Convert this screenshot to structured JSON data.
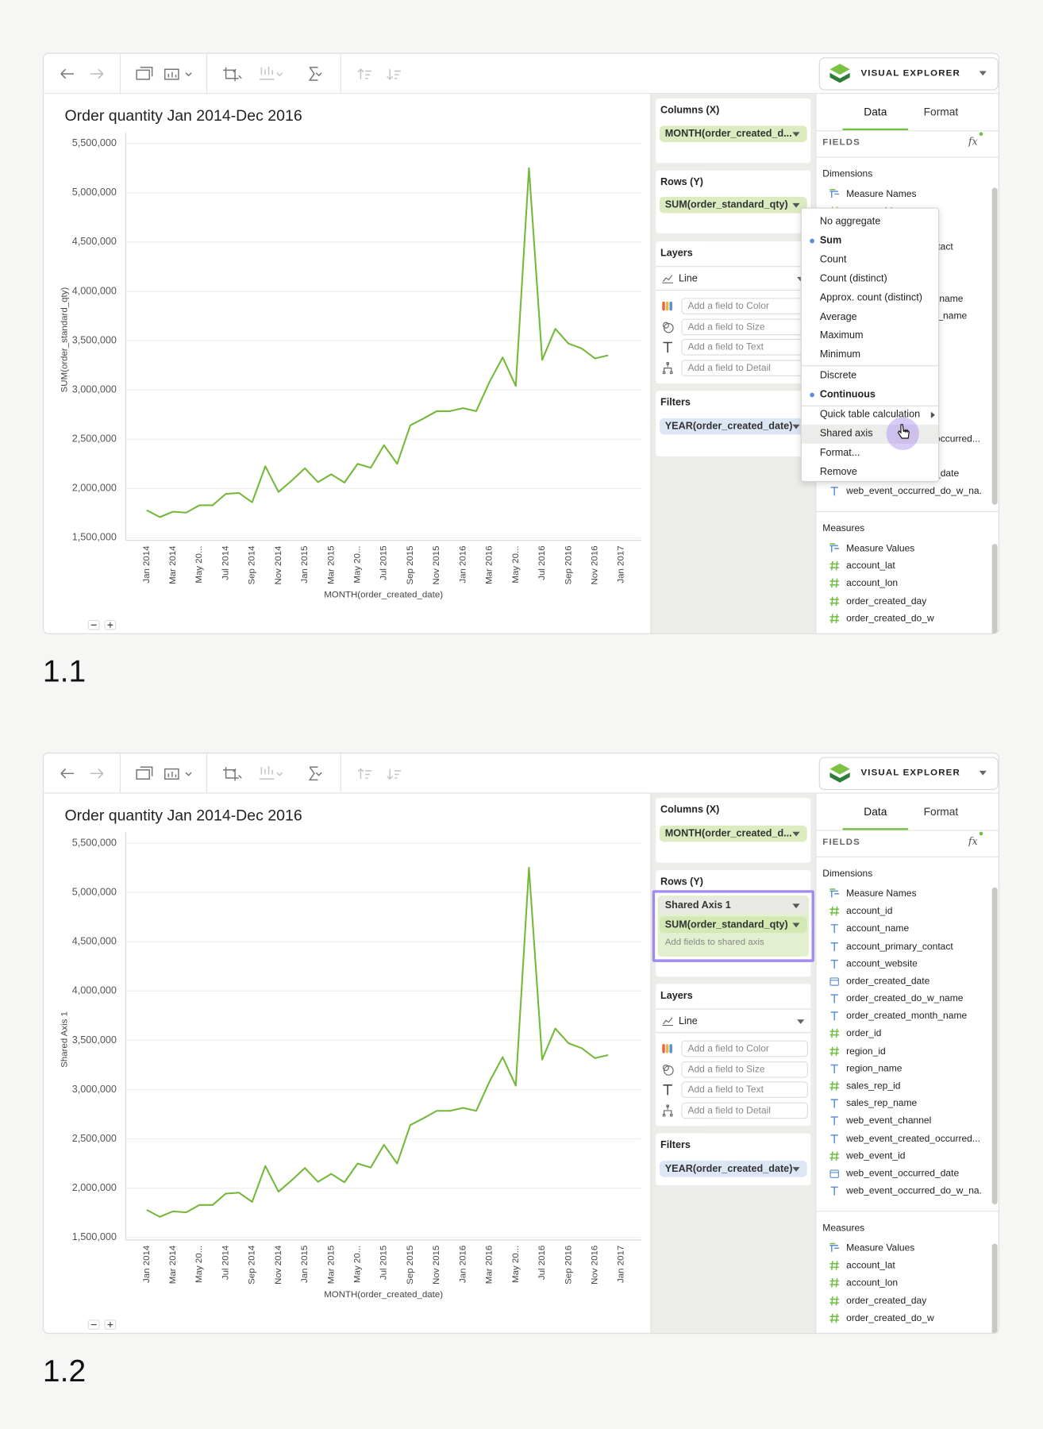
{
  "ui": {
    "product": "VISUAL EXPLORER",
    "tabs": [
      "Data",
      "Format"
    ],
    "fields_header": "FIELDS",
    "formula_icon": "fx",
    "dimensions_title": "Dimensions",
    "dimensions": [
      {
        "name": "Measure Names",
        "kind": "special"
      },
      {
        "name": "account_id",
        "kind": "number"
      },
      {
        "name": "account_name",
        "kind": "text"
      },
      {
        "name": "account_primary_contact",
        "kind": "text"
      },
      {
        "name": "account_website",
        "kind": "text"
      },
      {
        "name": "order_created_date",
        "kind": "date"
      },
      {
        "name": "order_created_do_w_name",
        "kind": "text"
      },
      {
        "name": "order_created_month_name",
        "kind": "text"
      },
      {
        "name": "order_id",
        "kind": "number"
      },
      {
        "name": "region_id",
        "kind": "number"
      },
      {
        "name": "region_name",
        "kind": "text"
      },
      {
        "name": "sales_rep_id",
        "kind": "number"
      },
      {
        "name": "sales_rep_name",
        "kind": "text"
      },
      {
        "name": "web_event_channel",
        "kind": "text"
      },
      {
        "name": "web_event_created_occurred...",
        "kind": "text"
      },
      {
        "name": "web_event_id",
        "kind": "number"
      },
      {
        "name": "web_event_occurred_date",
        "kind": "date"
      },
      {
        "name": "web_event_occurred_do_w_na...",
        "kind": "text"
      }
    ],
    "measures_title": "Measures",
    "measures": [
      {
        "name": "Measure Values",
        "kind": "special"
      },
      {
        "name": "account_lat",
        "kind": "number"
      },
      {
        "name": "account_lon",
        "kind": "number"
      },
      {
        "name": "order_created_day",
        "kind": "number"
      },
      {
        "name": "order_created_do_w",
        "kind": "number"
      }
    ],
    "columns_title": "Columns (X)",
    "columns_pill": "MONTH(order_created_d...",
    "rows_title": "Rows (Y)",
    "rows_pill": "SUM(order_standard_qty)",
    "layers_title": "Layers",
    "layer_type": "Line",
    "layer_inputs": [
      "Add a field to Color",
      "Add a field to Size",
      "Add a field to Text",
      "Add a field to Detail"
    ],
    "filters_title": "Filters",
    "filters_pill": "YEAR(order_created_date)"
  },
  "panels": [
    {
      "label": "1.1",
      "menu": [
        {
          "text": "No aggregate"
        },
        {
          "text": "Sum",
          "selected": true
        },
        {
          "text": "Count"
        },
        {
          "text": "Count (distinct)"
        },
        {
          "text": "Approx. count (distinct)"
        },
        {
          "text": "Average"
        },
        {
          "text": "Maximum"
        },
        {
          "text": "Minimum"
        },
        {
          "text": "Discrete",
          "separator_before": true
        },
        {
          "text": "Continuous",
          "selected": true
        },
        {
          "text": "Quick table calculation",
          "separator_before": true,
          "submenu": true
        },
        {
          "text": "Shared axis",
          "hovered": true
        },
        {
          "text": "Format..."
        },
        {
          "text": "Remove"
        }
      ]
    },
    {
      "label": "1.2",
      "shared_axis": {
        "title": "Shared Axis 1",
        "hint": "Add fields to shared axis"
      }
    }
  ],
  "chart_data": [
    {
      "type": "line",
      "title": "Order quantity Jan 2014-Dec 2016",
      "x_label": "MONTH(order_created_date)",
      "y_label": "SUM(order_standard_qty)",
      "color": "#74b83a",
      "grid": true,
      "categories": [
        "Jan 2014",
        null,
        "Mar 2014",
        null,
        "May 20...",
        null,
        "Jul 2014",
        null,
        "Sep 2014",
        null,
        "Nov 2014",
        null,
        "Jan 2015",
        null,
        "Mar 2015",
        null,
        "May 20...",
        null,
        "Jul 2015",
        null,
        "Sep 2015",
        null,
        "Nov 2015",
        null,
        "Jan 2016",
        null,
        "Mar 2016",
        null,
        "May 20...",
        null,
        "Jul 2016",
        null,
        "Sep 2016",
        null,
        "Nov 2016",
        null,
        "Jan 2017"
      ],
      "values": [
        1780000,
        1710000,
        1765000,
        1755000,
        1830000,
        1830000,
        1945000,
        1955000,
        1860000,
        2225000,
        1965000,
        2080000,
        2205000,
        2065000,
        2145000,
        2060000,
        2250000,
        2210000,
        2440000,
        2250000,
        2640000,
        2710000,
        2785000,
        2785000,
        2815000,
        2785000,
        3080000,
        3330000,
        3040000,
        5250000,
        3305000,
        3620000,
        3470000,
        3420000,
        3320000,
        3350000,
        null
      ],
      "ylim": [
        1475000,
        5560000
      ],
      "yticks": [
        {
          "value": 1500000,
          "label": "1,500,000"
        },
        {
          "value": 2000000,
          "label": "2,000,000"
        },
        {
          "value": 2500000,
          "label": "2,500,000"
        },
        {
          "value": 3000000,
          "label": "3,000,000"
        },
        {
          "value": 3500000,
          "label": "3,500,000"
        },
        {
          "value": 4000000,
          "label": "4,000,000"
        },
        {
          "value": 4500000,
          "label": "4,500,000"
        },
        {
          "value": 5000000,
          "label": "5,000,000"
        },
        {
          "value": 5500000,
          "label": "5,500,000"
        }
      ]
    },
    {
      "type": "line",
      "title": "Order quantity Jan 2014-Dec 2016",
      "x_label": "MONTH(order_created_date)",
      "y_label": "Shared Axis 1",
      "color": "#74b83a",
      "grid": true,
      "categories": [
        "Jan 2014",
        null,
        "Mar 2014",
        null,
        "May 20...",
        null,
        "Jul 2014",
        null,
        "Sep 2014",
        null,
        "Nov 2014",
        null,
        "Jan 2015",
        null,
        "Mar 2015",
        null,
        "May 20...",
        null,
        "Jul 2015",
        null,
        "Sep 2015",
        null,
        "Nov 2015",
        null,
        "Jan 2016",
        null,
        "Mar 2016",
        null,
        "May 20...",
        null,
        "Jul 2016",
        null,
        "Sep 2016",
        null,
        "Nov 2016",
        null,
        "Jan 2017"
      ],
      "values": [
        1780000,
        1710000,
        1765000,
        1755000,
        1830000,
        1830000,
        1945000,
        1955000,
        1860000,
        2225000,
        1965000,
        2080000,
        2205000,
        2065000,
        2145000,
        2060000,
        2250000,
        2210000,
        2440000,
        2250000,
        2640000,
        2710000,
        2785000,
        2785000,
        2815000,
        2785000,
        3080000,
        3330000,
        3040000,
        5250000,
        3305000,
        3620000,
        3470000,
        3420000,
        3320000,
        3350000,
        null
      ],
      "ylim": [
        1475000,
        5560000
      ],
      "yticks": [
        {
          "value": 1500000,
          "label": "1,500,000"
        },
        {
          "value": 2000000,
          "label": "2,000,000"
        },
        {
          "value": 2500000,
          "label": "2,500,000"
        },
        {
          "value": 3000000,
          "label": "3,000,000"
        },
        {
          "value": 3500000,
          "label": "3,500,000"
        },
        {
          "value": 4000000,
          "label": "4,000,000"
        },
        {
          "value": 4500000,
          "label": "4,500,000"
        },
        {
          "value": 5000000,
          "label": "5,000,000"
        },
        {
          "value": 5500000,
          "label": "5,500,000"
        }
      ]
    }
  ]
}
